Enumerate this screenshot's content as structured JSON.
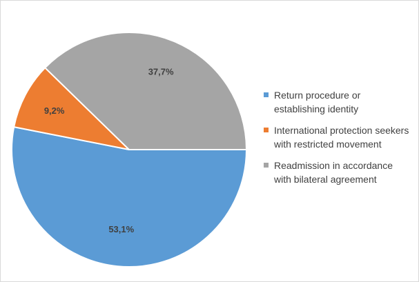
{
  "chart_data": {
    "type": "pie",
    "categories": [
      "Return procedure or establishing identity",
      "International protection seekers with restricted movement",
      "Readmission in accordance with bilateral agreement"
    ],
    "values": [
      53.1,
      9.2,
      37.7
    ],
    "labels": [
      "53,1%",
      "9,2%",
      "37,7%"
    ],
    "colors": [
      "#5b9bd5",
      "#ed7d31",
      "#a5a5a5"
    ],
    "legend_position": "right"
  }
}
